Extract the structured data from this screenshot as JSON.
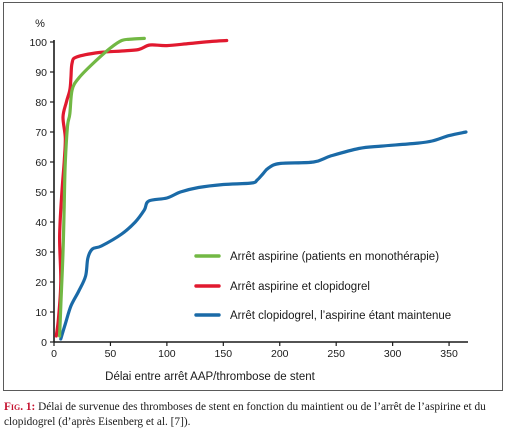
{
  "caption": {
    "label": "Fig. 1:",
    "text": "Délai de survenue des thromboses de stent en fonction du maintient ou de l’arrêt de l’aspirine et du clopidogrel (d’après Eisenberg et al. [7])."
  },
  "chart_data": {
    "type": "line",
    "xlabel": "Délai entre arrêt AAP/thrombose de stent",
    "ylabel": "%",
    "xlim": [
      0,
      365
    ],
    "ylim": [
      0,
      100
    ],
    "x_ticks": [
      0,
      50,
      100,
      150,
      200,
      250,
      300,
      350
    ],
    "y_ticks": [
      0,
      10,
      20,
      30,
      40,
      50,
      60,
      70,
      80,
      90,
      100
    ],
    "grid": false,
    "legend_position": "bottom-right",
    "series": [
      {
        "name": "Arrêt aspirine (patients en monothérapie)",
        "color": "#72b844",
        "points": [
          [
            5,
            2
          ],
          [
            6,
            12
          ],
          [
            8,
            30
          ],
          [
            9,
            45
          ],
          [
            10,
            60
          ],
          [
            12,
            72
          ],
          [
            14,
            76
          ],
          [
            16,
            84
          ],
          [
            22,
            88
          ],
          [
            35,
            93
          ],
          [
            50,
            98
          ],
          [
            60,
            100.5
          ],
          [
            70,
            101
          ],
          [
            80,
            101.2
          ]
        ]
      },
      {
        "name": "Arrêt aspirine et clopidogrel",
        "color": "#e1192f",
        "points": [
          [
            2,
            2
          ],
          [
            4,
            8
          ],
          [
            6,
            20
          ],
          [
            5,
            35
          ],
          [
            7,
            50
          ],
          [
            9,
            60
          ],
          [
            10,
            68
          ],
          [
            8,
            75
          ],
          [
            11,
            80
          ],
          [
            14,
            84
          ],
          [
            15,
            88
          ],
          [
            16,
            93
          ],
          [
            20,
            95
          ],
          [
            40,
            96.5
          ],
          [
            60,
            97
          ],
          [
            75,
            97.5
          ],
          [
            85,
            99
          ],
          [
            100,
            98.8
          ],
          [
            120,
            99.5
          ],
          [
            140,
            100.2
          ],
          [
            153,
            100.5
          ]
        ]
      },
      {
        "name": "Arrêt clopidogrel, l’aspirine étant maintenue",
        "color": "#1a6aa7",
        "points": [
          [
            6,
            1
          ],
          [
            10,
            6
          ],
          [
            15,
            12
          ],
          [
            22,
            17
          ],
          [
            28,
            22
          ],
          [
            30,
            28
          ],
          [
            34,
            31
          ],
          [
            42,
            32
          ],
          [
            60,
            36
          ],
          [
            72,
            40
          ],
          [
            80,
            44
          ],
          [
            84,
            47
          ],
          [
            100,
            48
          ],
          [
            112,
            50
          ],
          [
            128,
            51.5
          ],
          [
            150,
            52.5
          ],
          [
            175,
            53
          ],
          [
            180,
            54
          ],
          [
            185,
            56
          ],
          [
            190,
            58
          ],
          [
            200,
            59.5
          ],
          [
            230,
            60
          ],
          [
            245,
            62
          ],
          [
            270,
            64.5
          ],
          [
            290,
            65.3
          ],
          [
            320,
            66.2
          ],
          [
            335,
            67
          ],
          [
            350,
            68.8
          ],
          [
            365,
            70
          ]
        ]
      }
    ]
  }
}
